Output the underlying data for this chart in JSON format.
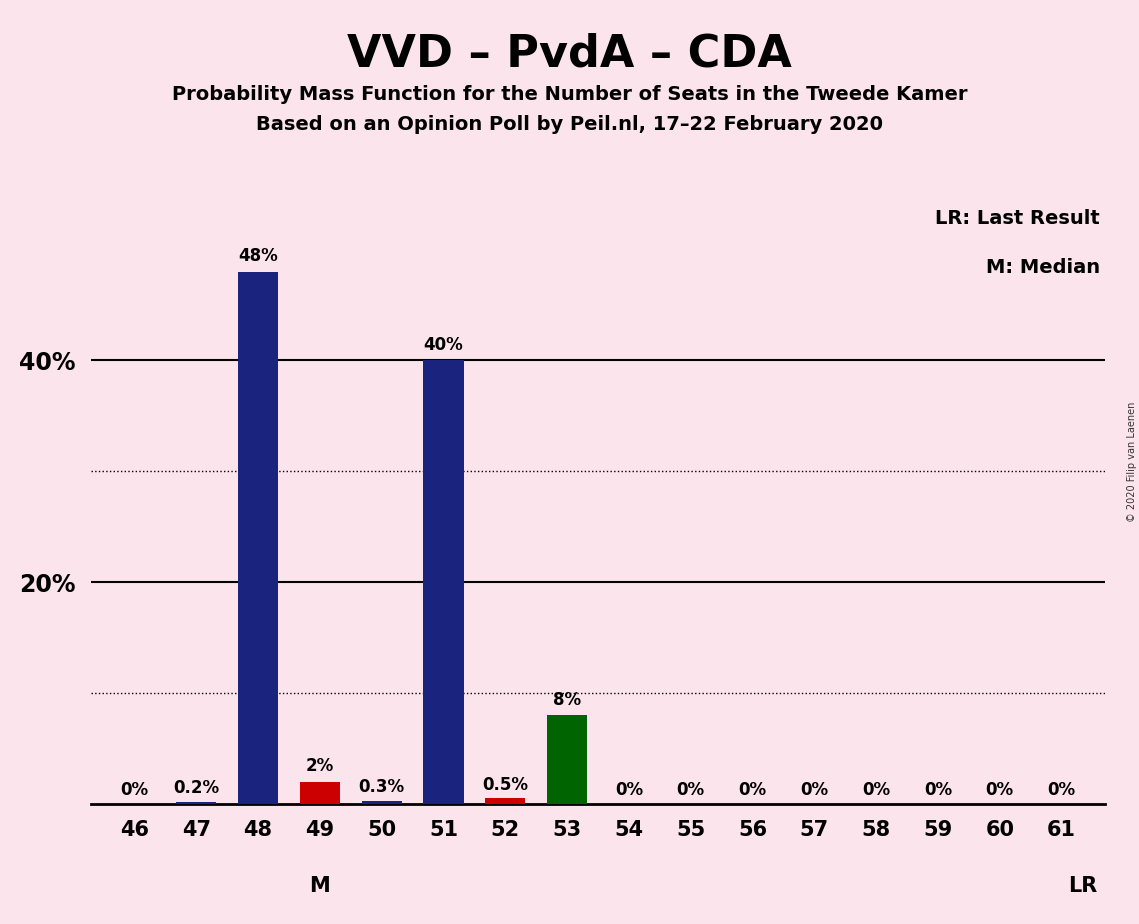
{
  "title": "VVD – PvdA – CDA",
  "subtitle1": "Probability Mass Function for the Number of Seats in the Tweede Kamer",
  "subtitle2": "Based on an Opinion Poll by Peil.nl, 17–22 February 2020",
  "copyright": "© 2020 Filip van Laenen",
  "seats": [
    46,
    47,
    48,
    49,
    50,
    51,
    52,
    53,
    54,
    55,
    56,
    57,
    58,
    59,
    60,
    61
  ],
  "probabilities": [
    0.0,
    0.2,
    48.0,
    2.0,
    0.3,
    40.0,
    0.5,
    8.0,
    0.0,
    0.0,
    0.0,
    0.0,
    0.0,
    0.0,
    0.0,
    0.0
  ],
  "bar_labels": [
    "0%",
    "0.2%",
    "48%",
    "2%",
    "0.3%",
    "40%",
    "0.5%",
    "8%",
    "0%",
    "0%",
    "0%",
    "0%",
    "0%",
    "0%",
    "0%",
    "0%"
  ],
  "bar_colors": [
    "#1a237e",
    "#1a237e",
    "#1a237e",
    "#cc0000",
    "#1a237e",
    "#1a237e",
    "#cc0000",
    "#006400",
    "#1a237e",
    "#1a237e",
    "#1a237e",
    "#1a237e",
    "#1a237e",
    "#1a237e",
    "#1a237e",
    "#1a237e"
  ],
  "background_color": "#fce4ec",
  "median_seat": 49,
  "last_result_seat": 61,
  "legend_lr": "LR: Last Result",
  "legend_m": "M: Median",
  "dotted_yticks": [
    10,
    30
  ],
  "solid_yticks": [
    20,
    40
  ],
  "ylim": [
    0,
    55
  ]
}
